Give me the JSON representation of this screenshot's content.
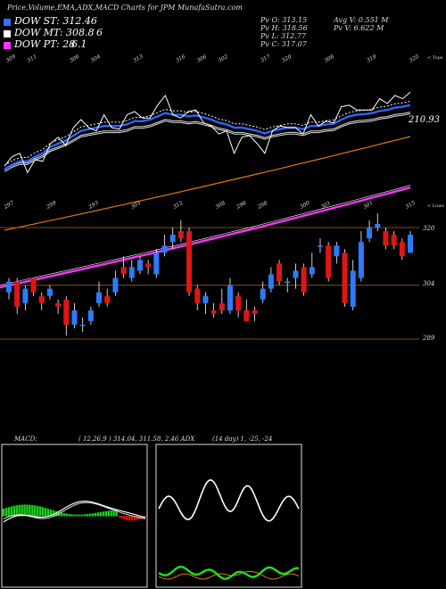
{
  "header": {
    "title": "Price,Volume,EMA,ADX,MACD Charts for JPM MunafaSutra.com",
    "pv_o": "Pv   O: 313.15",
    "pv_h": "Pv   H: 318.56",
    "pv_l": "Pv   L: 312.77",
    "pv_c": "Pv   C: 317.07",
    "avg_v": "Avg V: 0.551  M",
    "pv_v": "Pv   V: 6.622  M"
  },
  "legend": [
    {
      "label": "DOW ST: 312.46",
      "value": "",
      "color": "#3a6bff"
    },
    {
      "label": "DOW MT: 308.8",
      "value": "6",
      "color": "#ffffff"
    },
    {
      "label": "DOW PT: 28",
      "value": "6.1",
      "color": "#ff33ff"
    }
  ],
  "colors": {
    "up": "#2b7bff",
    "down": "#e01515",
    "band": "#b06010",
    "ema_long": "#e07a10",
    "dow_pt": "#ff33ff",
    "adx_main": "#22dd22",
    "adx_di": "#e07a10"
  },
  "chart_data": [
    {
      "type": "line",
      "name": "ema-panel",
      "top_tick_labels": [
        "309",
        "311",
        "",
        "306",
        "304",
        "",
        "313",
        "",
        "316",
        "306",
        "302",
        "",
        "317",
        "320",
        "",
        "308",
        "",
        "319",
        "",
        "320"
      ],
      "bottom_tick_labels": [
        "297",
        "",
        "299",
        "",
        "293",
        "",
        "303",
        "",
        "312",
        "",
        "308",
        "298",
        "298",
        "",
        "300",
        "301",
        "",
        "301",
        "",
        "315"
      ],
      "right_labels": [
        "< Tops",
        "< Lows"
      ],
      "value_label": "210.93",
      "price_series": [
        80,
        110,
        120,
        60,
        100,
        95,
        150,
        170,
        145,
        200,
        225,
        200,
        190,
        240,
        200,
        195,
        240,
        250,
        230,
        230,
        270,
        300,
        240,
        230,
        250,
        255,
        215,
        205,
        180,
        190,
        120,
        170,
        175,
        150,
        120,
        190,
        205,
        200,
        200,
        180,
        240,
        205,
        220,
        215,
        265,
        270,
        255,
        255,
        255,
        290,
        275,
        300,
        290,
        310
      ],
      "ema_blue": [
        70,
        85,
        95,
        95,
        110,
        120,
        140,
        150,
        160,
        175,
        190,
        195,
        200,
        205,
        205,
        205,
        210,
        220,
        220,
        225,
        235,
        245,
        240,
        240,
        235,
        238,
        232,
        225,
        215,
        210,
        200,
        200,
        195,
        190,
        182,
        190,
        195,
        200,
        200,
        195,
        205,
        205,
        210,
        212,
        225,
        235,
        240,
        242,
        245,
        252,
        255,
        262,
        265,
        270
      ]
    },
    {
      "type": "bar",
      "name": "candles",
      "right_ticks": [
        "320",
        "304",
        "289"
      ],
      "candles": [
        {
          "o": 302,
          "c": 305,
          "h": 306,
          "l": 300
        },
        {
          "o": 305,
          "c": 298,
          "h": 306,
          "l": 296
        },
        {
          "o": 299,
          "c": 303,
          "h": 304,
          "l": 297
        },
        {
          "o": 306,
          "c": 302,
          "h": 306,
          "l": 301
        },
        {
          "o": 301,
          "c": 299,
          "h": 302,
          "l": 297
        },
        {
          "o": 301,
          "c": 303,
          "h": 304,
          "l": 300
        },
        {
          "o": 299,
          "c": 298,
          "h": 300,
          "l": 296
        },
        {
          "o": 300,
          "c": 293,
          "h": 301,
          "l": 290
        },
        {
          "o": 293,
          "c": 297,
          "h": 299,
          "l": 292
        },
        {
          "o": 293,
          "c": 293,
          "h": 295,
          "l": 291
        },
        {
          "o": 294,
          "c": 297,
          "h": 298,
          "l": 293
        },
        {
          "o": 299,
          "c": 302,
          "h": 305,
          "l": 298
        },
        {
          "o": 301,
          "c": 299,
          "h": 303,
          "l": 298
        },
        {
          "o": 302,
          "c": 306,
          "h": 308,
          "l": 301
        },
        {
          "o": 309,
          "c": 307,
          "h": 312,
          "l": 306
        },
        {
          "o": 306,
          "c": 309,
          "h": 311,
          "l": 305
        },
        {
          "o": 308,
          "c": 311,
          "h": 312,
          "l": 307
        },
        {
          "o": 310,
          "c": 309,
          "h": 311,
          "l": 307
        },
        {
          "o": 307,
          "c": 313,
          "h": 314,
          "l": 306
        },
        {
          "o": 313,
          "c": 315,
          "h": 318,
          "l": 312
        },
        {
          "o": 316,
          "c": 318,
          "h": 320,
          "l": 314
        },
        {
          "o": 319,
          "c": 317,
          "h": 322,
          "l": 316
        },
        {
          "o": 319,
          "c": 302,
          "h": 320,
          "l": 301
        },
        {
          "o": 303,
          "c": 299,
          "h": 304,
          "l": 297
        },
        {
          "o": 299,
          "c": 301,
          "h": 302,
          "l": 296
        },
        {
          "o": 297,
          "c": 296,
          "h": 299,
          "l": 295
        },
        {
          "o": 299,
          "c": 297,
          "h": 303,
          "l": 296
        },
        {
          "o": 297,
          "c": 304,
          "h": 306,
          "l": 296
        },
        {
          "o": 301,
          "c": 297,
          "h": 302,
          "l": 295
        },
        {
          "o": 297,
          "c": 294,
          "h": 300,
          "l": 294
        },
        {
          "o": 297,
          "c": 296,
          "h": 298,
          "l": 294
        },
        {
          "o": 300,
          "c": 303,
          "h": 305,
          "l": 299
        },
        {
          "o": 303,
          "c": 307,
          "h": 309,
          "l": 302
        },
        {
          "o": 310,
          "c": 305,
          "h": 311,
          "l": 304
        },
        {
          "o": 305,
          "c": 305,
          "h": 306,
          "l": 302
        },
        {
          "o": 306,
          "c": 308,
          "h": 310,
          "l": 303
        },
        {
          "o": 309,
          "c": 302,
          "h": 310,
          "l": 301
        },
        {
          "o": 307,
          "c": 309,
          "h": 313,
          "l": 306
        },
        {
          "o": 315,
          "c": 315,
          "h": 317,
          "l": 313
        },
        {
          "o": 315,
          "c": 306,
          "h": 316,
          "l": 305
        },
        {
          "o": 312,
          "c": 315,
          "h": 316,
          "l": 310
        },
        {
          "o": 313,
          "c": 299,
          "h": 314,
          "l": 298
        },
        {
          "o": 298,
          "c": 308,
          "h": 311,
          "l": 297
        },
        {
          "o": 306,
          "c": 316,
          "h": 319,
          "l": 305
        },
        {
          "o": 317,
          "c": 320,
          "h": 322,
          "l": 316
        },
        {
          "o": 320,
          "c": 321,
          "h": 324,
          "l": 319
        },
        {
          "o": 319,
          "c": 315,
          "h": 320,
          "l": 314
        },
        {
          "o": 318,
          "c": 315,
          "h": 319,
          "l": 314
        },
        {
          "o": 316,
          "c": 312,
          "h": 317,
          "l": 311
        },
        {
          "o": 313,
          "c": 318,
          "h": 319,
          "l": 313
        }
      ]
    },
    {
      "type": "line",
      "name": "macd",
      "label": "MACD:"
    },
    {
      "type": "line",
      "name": "adx",
      "label": "( 12,26,9 ) 314.04,  311.58,  2.46  ADX",
      "label2": "(14  day) 1,  -25,  -24"
    }
  ]
}
